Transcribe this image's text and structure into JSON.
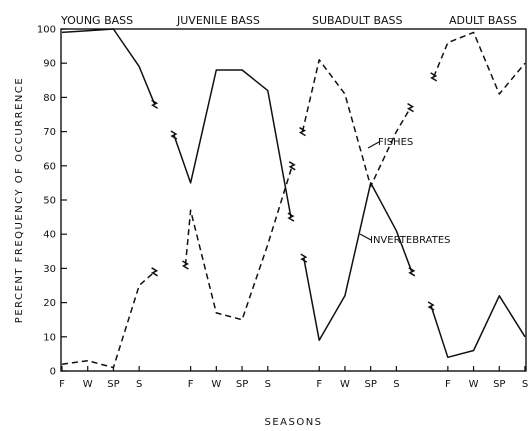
{
  "chart_data": {
    "type": "line",
    "title": "",
    "stages": [
      "YOUNG BASS",
      "JUVENILE BASS",
      "SUBADULT BASS",
      "ADULT BASS"
    ],
    "xlabel": "SEASONS",
    "ylabel": "PERCENT FREQUENCY OF OCCURRENCE",
    "ylim": [
      0,
      100
    ],
    "yticks": [
      0,
      10,
      20,
      30,
      40,
      50,
      60,
      70,
      80,
      90,
      100
    ],
    "grid": false,
    "season_labels": [
      "F",
      "W",
      "SP",
      "S"
    ],
    "series": [
      {
        "name": "FISHES",
        "style": "dashed",
        "segments": [
          {
            "x": [
              0,
              1,
              2,
              3,
              3.6
            ],
            "y": [
              2,
              3,
              1,
              25,
              29
            ]
          },
          {
            "x": [
              4.8,
              5,
              6,
              7,
              8,
              8.95
            ],
            "y": [
              31,
              47,
              17,
              15,
              37,
              60
            ]
          },
          {
            "x": [
              9.35,
              10,
              11,
              12,
              13,
              13.55
            ],
            "y": [
              70,
              91,
              81,
              54,
              70,
              77
            ]
          },
          {
            "x": [
              14.45,
              15,
              16,
              17,
              18
            ],
            "y": [
              86,
              96,
              99,
              81,
              90
            ]
          }
        ]
      },
      {
        "name": "INVERTEBRATES",
        "style": "solid",
        "segments": [
          {
            "x": [
              0,
              1,
              2,
              3,
              3.6
            ],
            "y": [
              99,
              99.5,
              100,
              89,
              78
            ]
          },
          {
            "x": [
              4.35,
              5,
              6,
              7,
              8,
              8.9
            ],
            "y": [
              69,
              55,
              88,
              88,
              82,
              45
            ]
          },
          {
            "x": [
              9.4,
              10,
              11,
              12,
              13,
              13.6
            ],
            "y": [
              33,
              9,
              22,
              55,
              41,
              29
            ]
          },
          {
            "x": [
              14.35,
              15,
              16,
              17,
              18
            ],
            "y": [
              19,
              4,
              6,
              22,
              10
            ]
          }
        ]
      }
    ]
  }
}
